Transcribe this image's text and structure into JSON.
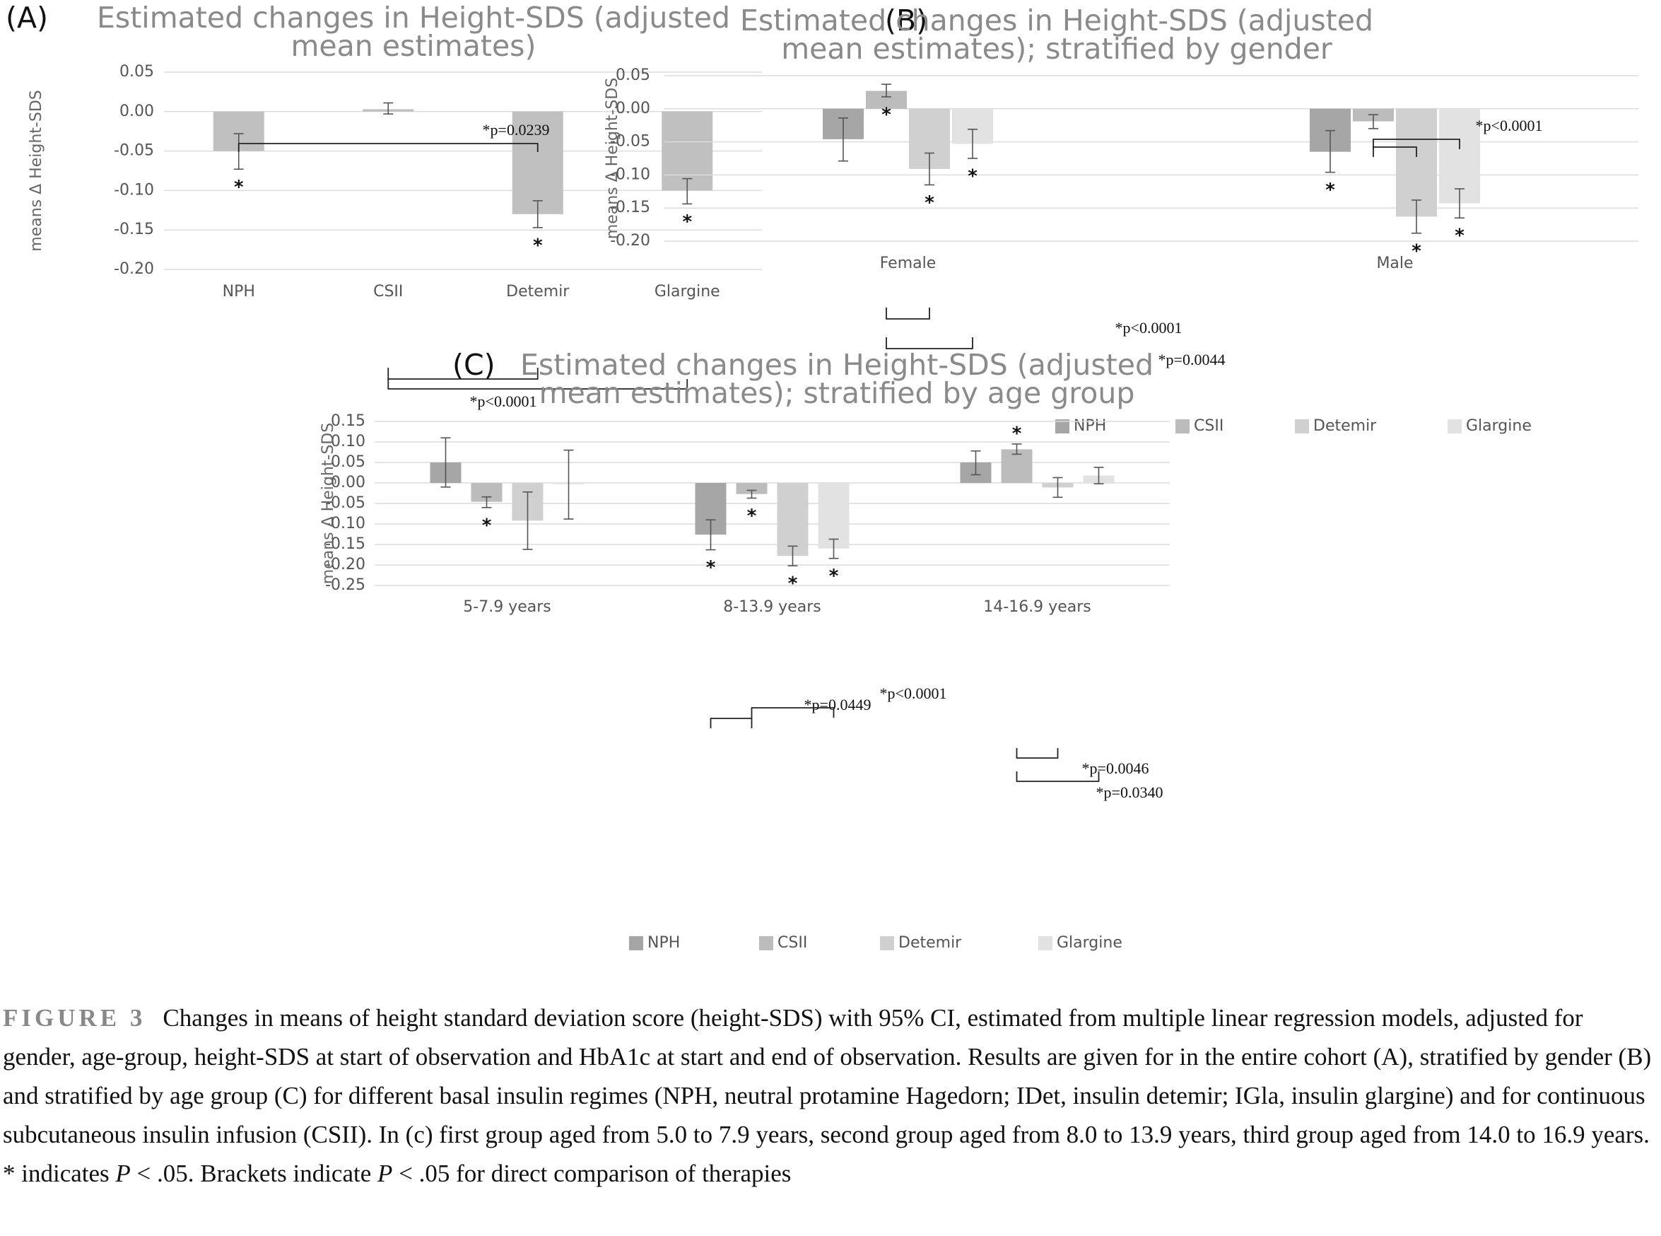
{
  "chart_data": [
    {
      "type": "bar",
      "panel": "(A)",
      "title": "Estimated changes in Height-SDS (adjusted mean estimates)",
      "ylabel": "means Δ Height-SDS",
      "ylim": [
        -0.2,
        0.05
      ],
      "yticks": [
        "0.05",
        "0.00",
        "-0.05",
        "-0.10",
        "-0.15",
        "-0.20"
      ],
      "categories": [
        "NPH",
        "CSII",
        "Detemir",
        "Glargine"
      ],
      "colors": [
        "#c0c0c0"
      ],
      "series": [
        {
          "name": "",
          "values": [
            -0.05,
            0.003,
            -0.13,
            -0.1
          ],
          "ci_low": [
            -0.073,
            -0.003,
            -0.147,
            -0.117
          ],
          "ci_high": [
            -0.028,
            0.011,
            -0.113,
            -0.085
          ],
          "sig": [
            true,
            false,
            true,
            true
          ]
        }
      ],
      "brackets": [
        {
          "text": "*p=0.0239",
          "from": "NPH",
          "to": "Detemir",
          "position": "above"
        },
        {
          "text": "*p<0.0001",
          "from": "CSII",
          "to": "Glargine",
          "position": "below"
        }
      ]
    },
    {
      "type": "bar",
      "panel": "(B)",
      "title": "Estimated changes in Height-SDS (adjusted mean estimates); stratified by gender",
      "ylabel": "means Δ Height-SDS",
      "ylim": [
        -0.2,
        0.05
      ],
      "yticks": [
        "0.05",
        "0.00",
        "-0.05",
        "-0.10",
        "-0.15",
        "-0.20"
      ],
      "categories": [
        "Female",
        "Male"
      ],
      "colors": [
        "#a6a6a6",
        "#bcbcbc",
        "#d0d0d0",
        "#e2e2e2"
      ],
      "series": [
        {
          "name": "NPH",
          "values": [
            -0.046,
            -0.065
          ],
          "ci_low": [
            -0.079,
            -0.096
          ],
          "ci_high": [
            -0.014,
            -0.033
          ],
          "sig": [
            false,
            true
          ]
        },
        {
          "name": "CSII",
          "values": [
            0.027,
            -0.019
          ],
          "ci_low": [
            0.018,
            -0.03
          ],
          "ci_high": [
            0.037,
            -0.009
          ],
          "sig": [
            true,
            false
          ]
        },
        {
          "name": "Detemir",
          "values": [
            -0.091,
            -0.163
          ],
          "ci_low": [
            -0.115,
            -0.188
          ],
          "ci_high": [
            -0.067,
            -0.138
          ],
          "sig": [
            true,
            true
          ]
        },
        {
          "name": "Glargine",
          "values": [
            -0.053,
            -0.143
          ],
          "ci_low": [
            -0.075,
            -0.165
          ],
          "ci_high": [
            -0.031,
            -0.121
          ],
          "sig": [
            true,
            true
          ]
        }
      ],
      "brackets": [
        {
          "text": "*p<0.0001",
          "position": "below-female-1"
        },
        {
          "text": "*p=0.0044",
          "position": "below-female-2"
        },
        {
          "text": "*p<0.0001",
          "position": "above-male"
        }
      ]
    },
    {
      "type": "bar",
      "panel": "(C)",
      "title": "Estimated changes in Height-SDS (adjusted mean estimates); stratified by age group",
      "ylabel": "means Δ Height-SDS",
      "ylim": [
        -0.25,
        0.15
      ],
      "yticks": [
        "0.15",
        "0.10",
        "0.05",
        "0.00",
        "-0.05",
        "-0.10",
        "-0.15",
        "-0.20",
        "-0.25"
      ],
      "categories": [
        "5-7.9 years",
        "8-13.9 years",
        "14-16.9 years"
      ],
      "colors": [
        "#a6a6a6",
        "#bcbcbc",
        "#d0d0d0",
        "#e2e2e2"
      ],
      "series": [
        {
          "name": "NPH",
          "values": [
            0.05,
            -0.126,
            0.05
          ],
          "ci_low": [
            -0.01,
            -0.163,
            0.02
          ],
          "ci_high": [
            0.11,
            -0.09,
            0.078
          ],
          "sig": [
            false,
            true,
            false
          ]
        },
        {
          "name": "CSII",
          "values": [
            -0.046,
            -0.027,
            0.082
          ],
          "ci_low": [
            -0.06,
            -0.037,
            0.07
          ],
          "ci_high": [
            -0.034,
            -0.018,
            0.095
          ],
          "sig": [
            true,
            true,
            true
          ]
        },
        {
          "name": "Detemir",
          "values": [
            -0.092,
            -0.178,
            -0.011
          ],
          "ci_low": [
            -0.162,
            -0.202,
            -0.035
          ],
          "ci_high": [
            -0.022,
            -0.154,
            0.013
          ],
          "sig": [
            false,
            true,
            false
          ]
        },
        {
          "name": "Glargine",
          "values": [
            -0.003,
            -0.16,
            0.018
          ],
          "ci_low": [
            -0.088,
            -0.184,
            -0.002
          ],
          "ci_high": [
            0.08,
            -0.137,
            0.038
          ],
          "sig": [
            false,
            true,
            false
          ]
        }
      ],
      "brackets": [
        {
          "text": "*p=0.0449",
          "position": "above-8-13.9-1"
        },
        {
          "text": "*p<0.0001",
          "position": "above-8-13.9-2"
        },
        {
          "text": "*p=0.0046",
          "position": "below-14-16.9-1"
        },
        {
          "text": "*p=0.0340",
          "position": "below-14-16.9-2"
        }
      ]
    }
  ],
  "caption": {
    "label": "FIGURE 3",
    "part1": "Changes in means of height standard deviation score (height-SDS) with 95% CI, estimated from multiple linear regression models, adjusted for gender, age-group, height-SDS at start of observation and HbA1c at start and end of observation. Results are given for in the entire cohort (A), stratified by gender (B) and stratified by age group (C) for different basal insulin regimes (NPH, neutral protamine Hagedorn; IDet, insulin detemir; IGla, insulin glargine) and for continuous subcutaneous insulin infusion (CSII). In (c) first group aged from 5.0 to 7.9 years, second group aged from 8.0 to 13.9 years, third group aged from 14.0 to 16.9 years. * indicates ",
    "p_symbol": "P",
    "part2": " < .05. Brackets indicate ",
    "part3": " < .05 for direct comparison of therapies"
  }
}
